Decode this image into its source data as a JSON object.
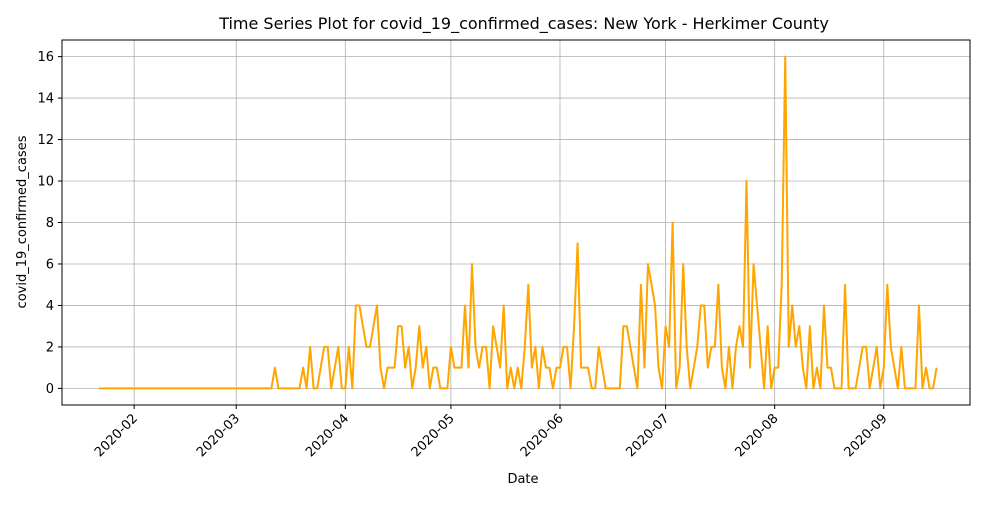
{
  "chart_data": {
    "type": "line",
    "title": "Time Series Plot for covid_19_confirmed_cases: New York - Herkimer County",
    "xlabel": "Date",
    "ylabel": "covid_19_confirmed_cases",
    "x_start": "2020-01-22",
    "x_end": "2020-09-15",
    "x_ticks": [
      "2020-02",
      "2020-03",
      "2020-04",
      "2020-05",
      "2020-06",
      "2020-07",
      "2020-08",
      "2020-09"
    ],
    "y_ticks": [
      0,
      2,
      4,
      6,
      8,
      10,
      12,
      14,
      16
    ],
    "ylim": [
      -0.8,
      16.8
    ],
    "grid": true,
    "series": [
      {
        "color": "#FFA500",
        "values": [
          0,
          0,
          0,
          0,
          0,
          0,
          0,
          0,
          0,
          0,
          0,
          0,
          0,
          0,
          0,
          0,
          0,
          0,
          0,
          0,
          0,
          0,
          0,
          0,
          0,
          0,
          0,
          0,
          0,
          0,
          0,
          0,
          0,
          0,
          0,
          0,
          0,
          0,
          0,
          0,
          0,
          0,
          0,
          0,
          0,
          0,
          0,
          0,
          0,
          0,
          1,
          0,
          0,
          0,
          0,
          0,
          0,
          0,
          1,
          0,
          2,
          0,
          0,
          1,
          2,
          2,
          0,
          1,
          2,
          0,
          0,
          2,
          0,
          4,
          4,
          3,
          2,
          2,
          3,
          4,
          1,
          0,
          1,
          1,
          1,
          3,
          3,
          1,
          2,
          0,
          1,
          3,
          1,
          2,
          0,
          1,
          1,
          0,
          0,
          0,
          2,
          1,
          1,
          1,
          4,
          1,
          6,
          2,
          1,
          2,
          2,
          0,
          3,
          2,
          1,
          4,
          0,
          1,
          0,
          1,
          0,
          2,
          5,
          1,
          2,
          0,
          2,
          1,
          1,
          0,
          1,
          1,
          2,
          2,
          0,
          3,
          7,
          1,
          1,
          1,
          0,
          0,
          2,
          1,
          0,
          0,
          0,
          0,
          0,
          3,
          3,
          2,
          1,
          0,
          5,
          1,
          6,
          5,
          4,
          1,
          0,
          3,
          2,
          8,
          0,
          1,
          6,
          2,
          0,
          1,
          2,
          4,
          4,
          1,
          2,
          2,
          5,
          1,
          0,
          2,
          0,
          2,
          3,
          2,
          10,
          1,
          6,
          4,
          2,
          0,
          3,
          0,
          1,
          1,
          5,
          16,
          2,
          4,
          2,
          3,
          1,
          0,
          3,
          0,
          1,
          0,
          4,
          1,
          1,
          0,
          0,
          0,
          5,
          0,
          0,
          0,
          1,
          2,
          2,
          0,
          1,
          2,
          0,
          1,
          5,
          2,
          1,
          0,
          2,
          0,
          0,
          0,
          0,
          4,
          0,
          1,
          0,
          0,
          1
        ]
      }
    ]
  }
}
